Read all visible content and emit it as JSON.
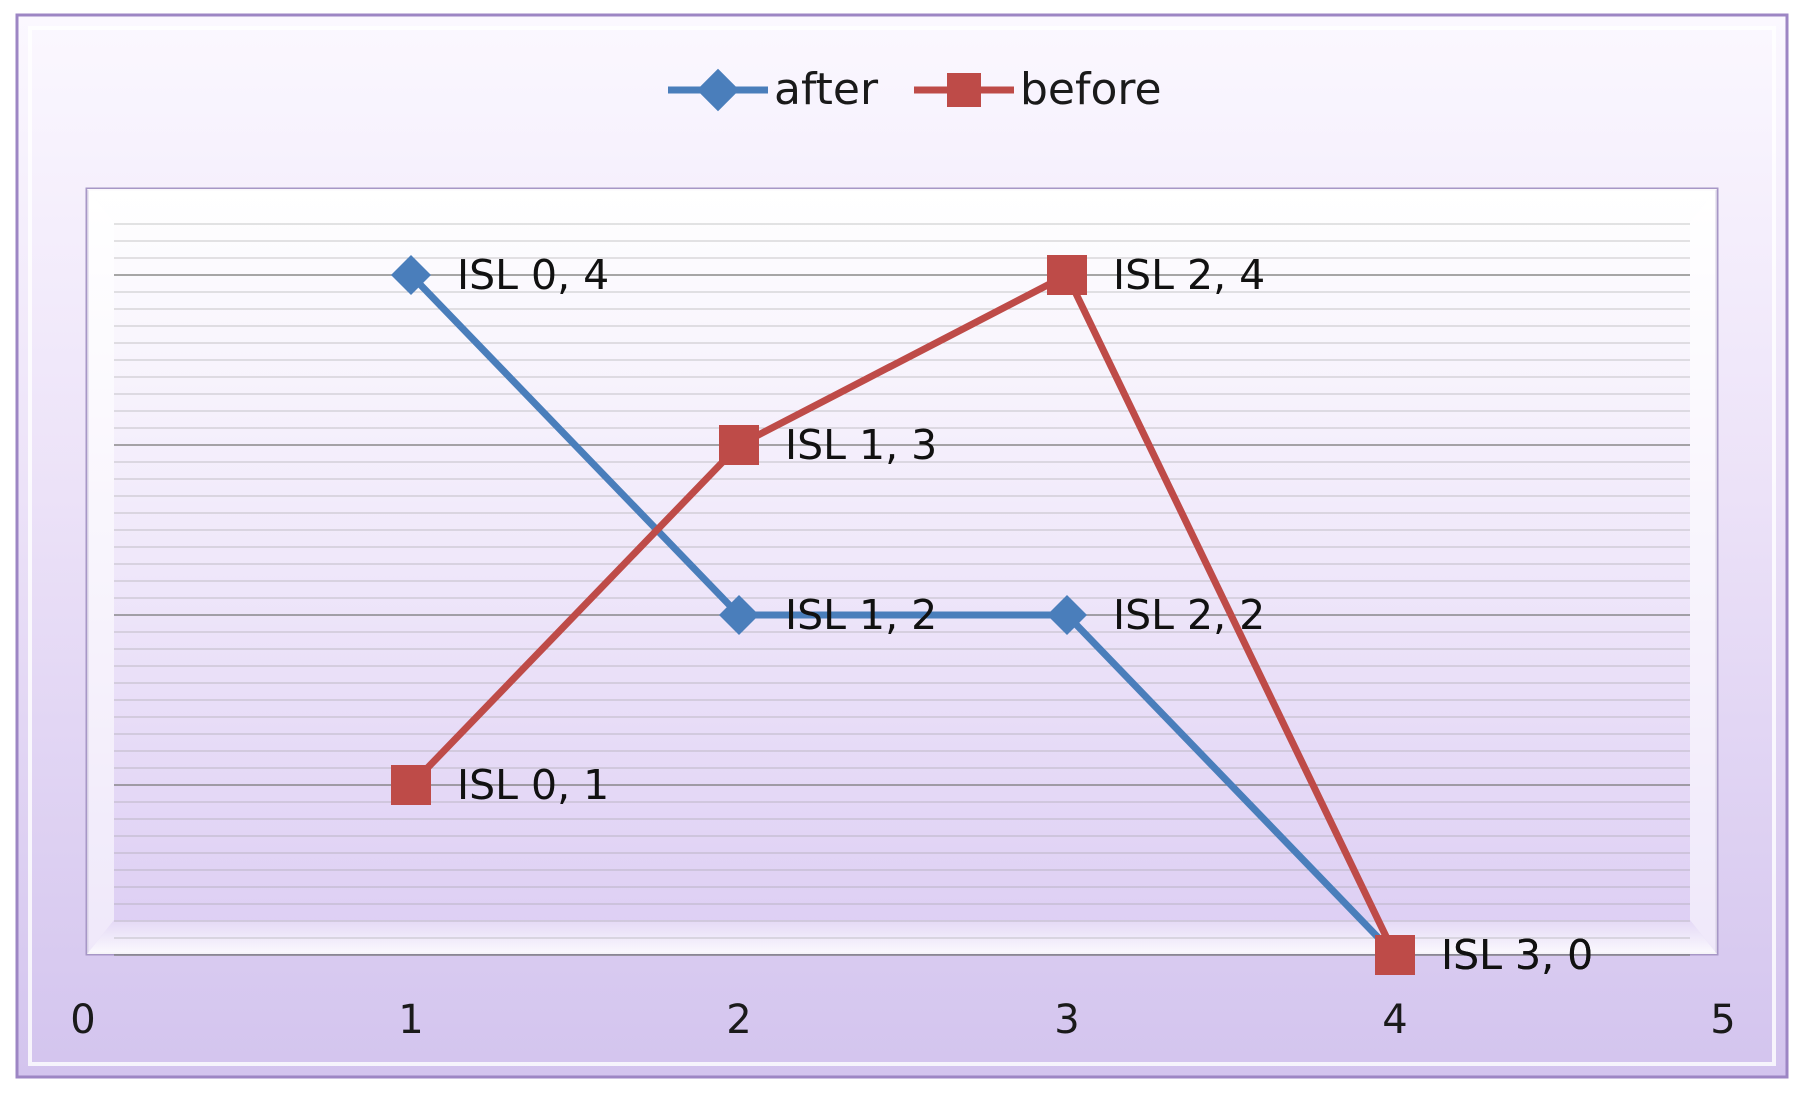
{
  "chart_data": {
    "type": "line",
    "title": "",
    "xlabel": "",
    "ylabel": "",
    "xlim": [
      0,
      5
    ],
    "ylim": [
      0,
      4.4
    ],
    "x_ticks": [
      "0",
      "1",
      "2",
      "3",
      "4",
      "5"
    ],
    "grid": true,
    "legend_position": "top-center",
    "series": [
      {
        "name": "after",
        "color": "#4a7ebb",
        "marker": "diamond",
        "x": [
          1,
          2,
          3,
          4
        ],
        "y": [
          4,
          2,
          2,
          0
        ],
        "labels": [
          "ISL 0, 4",
          "ISL 1, 2",
          "ISL 2, 2",
          "ISL 3, 0"
        ]
      },
      {
        "name": "before",
        "color": "#be4b48",
        "marker": "square",
        "x": [
          1,
          2,
          3,
          4
        ],
        "y": [
          1,
          3,
          4,
          0
        ],
        "labels": [
          "ISL 0, 1",
          "ISL 1, 3",
          "ISL 2, 4",
          "ISL 3, 0"
        ]
      }
    ]
  },
  "colors": {
    "frame_light": "#f3ecfb",
    "frame_dark": "#cdbfe8",
    "grid_line": "#8a8a8a"
  }
}
